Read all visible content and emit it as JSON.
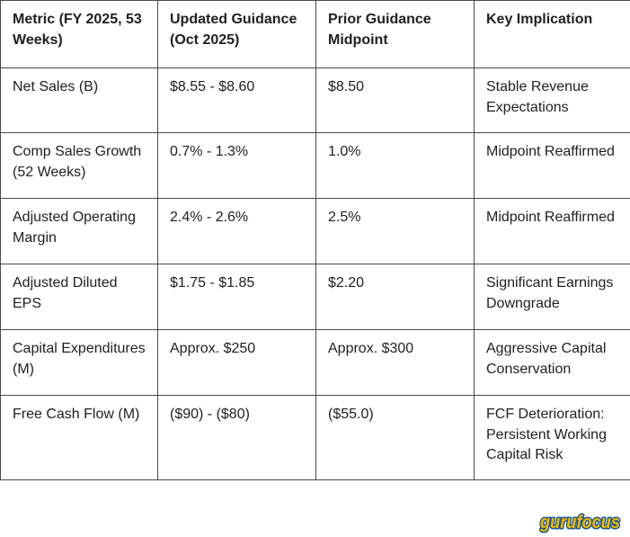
{
  "table": {
    "headers": [
      "Metric (FY 2025, 53 Weeks)",
      "Updated Guidance (Oct 2025)",
      "Prior Guidance Midpoint",
      "Key Implication"
    ],
    "rows": [
      [
        "Net Sales (B)",
        "$8.55 - $8.60",
        "$8.50",
        "Stable Revenue Expectations"
      ],
      [
        "Comp Sales Growth (52 Weeks)",
        "0.7% - 1.3%",
        "1.0%",
        "Midpoint Reaffirmed"
      ],
      [
        "Adjusted Operating Margin",
        "2.4% - 2.6%",
        "2.5%",
        "Midpoint Reaffirmed"
      ],
      [
        "Adjusted Diluted EPS",
        "$1.75 - $1.85",
        "$2.20",
        "Significant Earnings Downgrade"
      ],
      [
        "Capital Expenditures (M)",
        "Approx. $250",
        "Approx. $300",
        "Aggressive Capital Conservation"
      ],
      [
        "Free Cash Flow (M)",
        "($90) - ($80)",
        "($55.0)",
        "FCF Deterioration: Persistent Working Capital Risk"
      ]
    ]
  },
  "watermark": {
    "text": "gurufocus",
    "fill_color": "#f5b800",
    "stroke_color": "#1c5a8f"
  }
}
